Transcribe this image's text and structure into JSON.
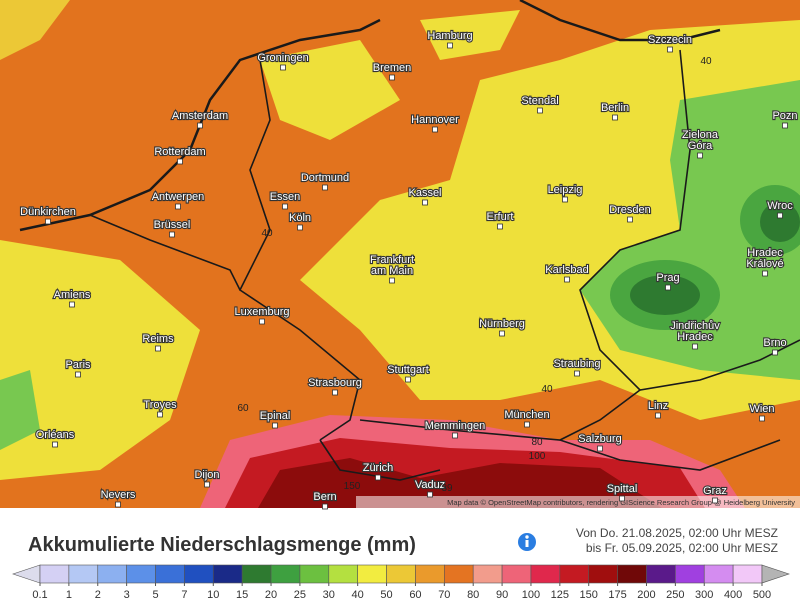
{
  "title": "Akkumulierte Niederschlagsmenge (mm)",
  "date_from": "Von Do. 21.08.2025, 02:00 Uhr MESZ",
  "date_to": "bis Fr. 05.09.2025, 02:00 Uhr MESZ",
  "attribution": "Map data © OpenStreetMap contributors, rendering GIScience Research Group @ Heidelberg University",
  "cities": [
    [
      "Hamburg"
    ],
    [
      "Szczecin"
    ],
    [
      "Groningen"
    ],
    [
      "Bremen"
    ],
    [
      "Amsterdam"
    ],
    [
      "Hannover"
    ],
    [
      "Stendal"
    ],
    [
      "Berlin"
    ],
    [
      "Pozn"
    ],
    [
      "Rotterdam"
    ],
    [
      "Zielona",
      "Góra"
    ],
    [
      "Dortmund"
    ],
    [
      "Antwerpen"
    ],
    [
      "Essen"
    ],
    [
      "Kassel"
    ],
    [
      "Leipzig"
    ],
    [
      "Wroc"
    ],
    [
      "Dünkirchen"
    ],
    [
      "Brüssel"
    ],
    [
      "Köln"
    ],
    [
      "Erfurt"
    ],
    [
      "Dresden"
    ],
    [
      "Frankfurt",
      "am Main"
    ],
    [
      "Karlsbad"
    ],
    [
      "Prag"
    ],
    [
      "Hradec",
      "Králové"
    ],
    [
      "Amiens"
    ],
    [
      "Luxemburg"
    ],
    [
      "Nürnberg"
    ],
    [
      "Jindřichův",
      "Hradec"
    ],
    [
      "Reims"
    ],
    [
      "Brno"
    ],
    [
      "Paris"
    ],
    [
      "Stuttgart"
    ],
    [
      "Straubing"
    ],
    [
      "Strasbourg"
    ],
    [
      "Troyes"
    ],
    [
      "Epinal"
    ],
    [
      "München"
    ],
    [
      "Linz"
    ],
    [
      "Wien"
    ],
    [
      "Orléans"
    ],
    [
      "Memmingen"
    ],
    [
      "Salzburg"
    ],
    [
      "Zürich"
    ],
    [
      "Dijon"
    ],
    [
      "Vaduz"
    ],
    [
      "Spittal"
    ],
    [
      "Nevers"
    ],
    [
      "Bern"
    ],
    [
      "Graz"
    ]
  ],
  "contour_labels": [
    40,
    40,
    40,
    60,
    80,
    100,
    150,
    39
  ],
  "legend": {
    "ticks": [
      {
        "value": 0.1,
        "label": "0.1"
      },
      1,
      2,
      3,
      5,
      7,
      10,
      15,
      20,
      25,
      30,
      40,
      50,
      60,
      70,
      80,
      90,
      100,
      125,
      150,
      175,
      200,
      250,
      300,
      400,
      500
    ],
    "colors": [
      "#dcdcec",
      "#d4d0f4",
      "#b4c8f4",
      "#8cb0f0",
      "#5c90e8",
      "#3a70d8",
      "#2050c0",
      "#1a2a88",
      "#2e7a30",
      "#3ea040",
      "#6cc040",
      "#b4e040",
      "#f2ec40",
      "#ecc836",
      "#ea9a2c",
      "#e47422",
      "#f29c8c",
      "#ee6478",
      "#e0284c",
      "#c41a22",
      "#a00e0e",
      "#700808",
      "#5a1a8a",
      "#a040e0",
      "#d48cf0",
      "#f2c8f8",
      "#b4b4b4"
    ]
  }
}
